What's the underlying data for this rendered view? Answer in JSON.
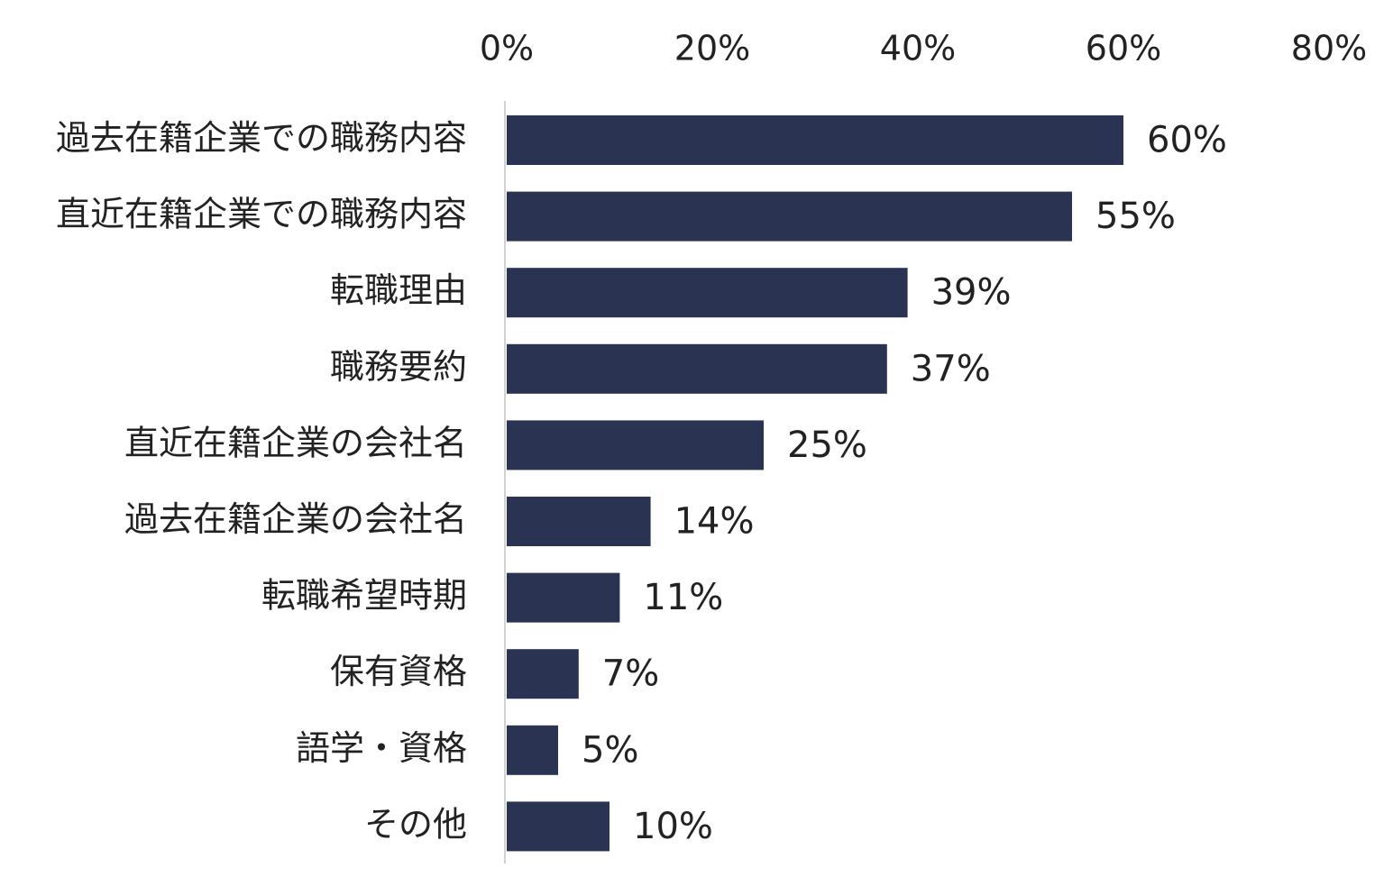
{
  "chart_data": {
    "type": "bar",
    "orientation": "horizontal",
    "title": "",
    "xlabel": "",
    "ylabel": "",
    "xlim": [
      0,
      80
    ],
    "x_ticks": [
      "0%",
      "20%",
      "40%",
      "60%",
      "80%"
    ],
    "x_axis_position": "top",
    "grid": false,
    "legend": "none",
    "bar_color": "#2a3352",
    "categories": [
      "過去在籍企業での職務内容",
      "直近在籍企業での職務内容",
      "転職理由",
      "職務要約",
      "直近在籍企業の会社名",
      "過去在籍企業の会社名",
      "転職希望時期",
      "保有資格",
      "語学・資格",
      "その他"
    ],
    "values": [
      60,
      55,
      39,
      37,
      25,
      14,
      11,
      7,
      5,
      10
    ],
    "value_labels": [
      "60%",
      "55%",
      "39%",
      "37%",
      "25%",
      "14%",
      "11%",
      "7%",
      "5%",
      "10%"
    ]
  }
}
